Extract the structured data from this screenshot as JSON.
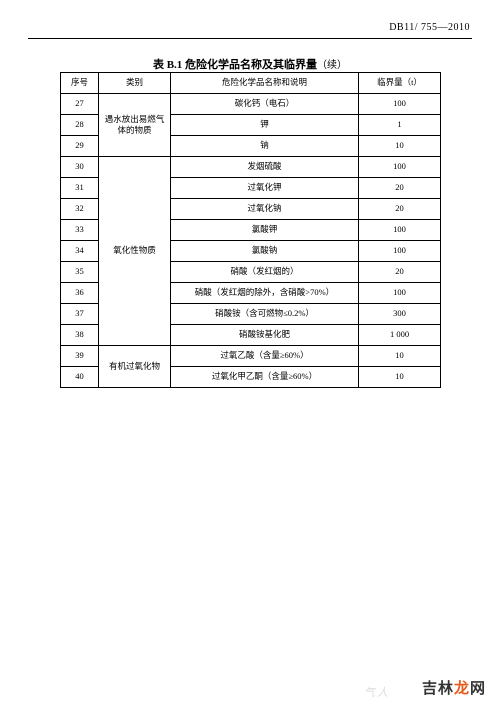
{
  "doc_code": "DB11/ 755—2010",
  "title_main": "表 B.1  危险化学品名称及其临界量",
  "title_cont": "（续）",
  "headers": {
    "seq": "序号",
    "category": "类别",
    "name": "危险化学品名称和说明",
    "limit": "临界量（t）"
  },
  "groups": [
    {
      "category": "遇水放出易燃气体的物质",
      "rows": [
        {
          "seq": "27",
          "name": "碳化钙（电石）",
          "limit": "100"
        },
        {
          "seq": "28",
          "name": "钾",
          "limit": "1"
        },
        {
          "seq": "29",
          "name": "钠",
          "limit": "10"
        }
      ]
    },
    {
      "category": "氧化性物质",
      "rows": [
        {
          "seq": "30",
          "name": "发烟硫酸",
          "limit": "100"
        },
        {
          "seq": "31",
          "name": "过氧化钾",
          "limit": "20"
        },
        {
          "seq": "32",
          "name": "过氧化钠",
          "limit": "20"
        },
        {
          "seq": "33",
          "name": "氯酸钾",
          "limit": "100"
        },
        {
          "seq": "34",
          "name": "氯酸钠",
          "limit": "100"
        },
        {
          "seq": "35",
          "name": "硝酸（发红烟的）",
          "limit": "20"
        },
        {
          "seq": "36",
          "name": "硝酸（发红烟的除外，含硝酸>70%）",
          "limit": "100"
        },
        {
          "seq": "37",
          "name": "硝酸铵（含可燃物≤0.2%）",
          "limit": "300"
        },
        {
          "seq": "38",
          "name": "硝酸铵基化肥",
          "limit": "1 000"
        }
      ]
    },
    {
      "category": "有机过氧化物",
      "rows": [
        {
          "seq": "39",
          "name": "过氧乙酸（含量≥60%）",
          "limit": "10"
        },
        {
          "seq": "40",
          "name": "过氧化甲乙酮（含量≥60%）",
          "limit": "10"
        }
      ]
    }
  ],
  "branding": {
    "p1": "吉林",
    "p2": "龙",
    "p3": "网"
  },
  "watermark": "气人"
}
